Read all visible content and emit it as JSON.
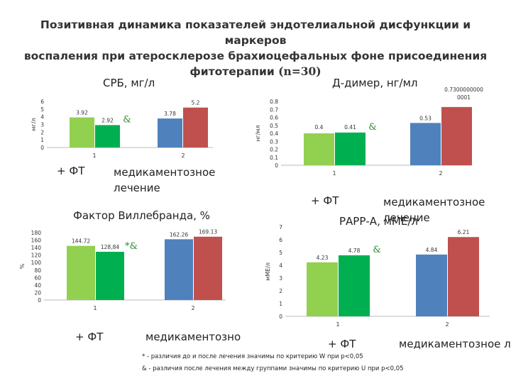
{
  "title": {
    "line1": "Позитивная динамика показателей эндотелиальной дисфункции и маркеров",
    "line2": "воспаления при атеросклерозе брахиоцефальных фоне присоединения",
    "line3_text": "фитотерапии ",
    "line3_n": "(n=30)"
  },
  "legend_labels": {
    "ft": "+ ФТ",
    "med": "медикаментозное лечение",
    "med_clipped": "медикаментозно"
  },
  "footnotes": {
    "star": "* - различия до и после лечения значимы по критерию W при p<0,05",
    "amp": "& - различия после лечения между группами значимы по критерию U при p<0,05"
  },
  "colors": {
    "light_green": "#92d050",
    "green": "#00b050",
    "blue": "#4f81bd",
    "red": "#c0504d",
    "marker": "#2e8b2e"
  },
  "chart_data": [
    {
      "id": "crp",
      "type": "bar",
      "title": "СРБ, мг/л",
      "ylabel": "мг/л",
      "categories": [
        "1",
        "2"
      ],
      "ylim": [
        0,
        6
      ],
      "yticks": [
        "0",
        "1",
        "2",
        "3",
        "4",
        "5",
        "6"
      ],
      "bars": [
        {
          "cat": 0,
          "value": 3.92,
          "label": "3.92",
          "color": "#92d050"
        },
        {
          "cat": 0,
          "value": 2.92,
          "label": "2.92",
          "color": "#00b050",
          "marker": "&"
        },
        {
          "cat": 1,
          "value": 3.78,
          "label": "3.78",
          "color": "#4f81bd"
        },
        {
          "cat": 1,
          "value": 5.2,
          "label": "5.2",
          "color": "#c0504d"
        }
      ]
    },
    {
      "id": "ddimer",
      "type": "bar",
      "title": "Д-димер, нг/мл",
      "ylabel": "нг/мл",
      "categories": [
        "1",
        "2"
      ],
      "ylim": [
        0,
        0.8
      ],
      "yticks": [
        "0",
        "0.1",
        "0.2",
        "0.3",
        "0.4",
        "0.5",
        "0.6",
        "0.7",
        "0.8"
      ],
      "bars": [
        {
          "cat": 0,
          "value": 0.4,
          "label": "0.4",
          "color": "#92d050"
        },
        {
          "cat": 0,
          "value": 0.41,
          "label": "0.41",
          "color": "#00b050",
          "marker": "&"
        },
        {
          "cat": 1,
          "value": 0.53,
          "label": "0.53",
          "color": "#4f81bd"
        },
        {
          "cat": 1,
          "value": 0.73,
          "label": "0.73000000000001",
          "color": "#c0504d"
        }
      ]
    },
    {
      "id": "vwf",
      "type": "bar",
      "title": "Фактор Виллебранда, %",
      "ylabel": "%",
      "categories": [
        "1",
        "2"
      ],
      "ylim": [
        0,
        180
      ],
      "yticks": [
        "0",
        "20",
        "40",
        "60",
        "80",
        "100",
        "120",
        "140",
        "160",
        "180"
      ],
      "bars": [
        {
          "cat": 0,
          "value": 144.72,
          "label": "144.72",
          "color": "#92d050"
        },
        {
          "cat": 0,
          "value": 128.84,
          "label": "128,84",
          "color": "#00b050",
          "marker": "*&"
        },
        {
          "cat": 1,
          "value": 162.26,
          "label": "162.26",
          "color": "#4f81bd"
        },
        {
          "cat": 1,
          "value": 169.13,
          "label": "169.13",
          "color": "#c0504d"
        }
      ]
    },
    {
      "id": "pappa",
      "type": "bar",
      "title": "РАРР-А, мМЕ/л",
      "ylabel": "мМЕ/л",
      "categories": [
        "1",
        "2"
      ],
      "ylim": [
        0,
        7
      ],
      "yticks": [
        "0",
        "1",
        "2",
        "3",
        "4",
        "5",
        "6",
        "7"
      ],
      "bars": [
        {
          "cat": 0,
          "value": 4.23,
          "label": "4.23",
          "color": "#92d050"
        },
        {
          "cat": 0,
          "value": 4.78,
          "label": "4.78",
          "color": "#00b050",
          "marker": "&"
        },
        {
          "cat": 1,
          "value": 4.84,
          "label": "4.84",
          "color": "#4f81bd"
        },
        {
          "cat": 1,
          "value": 6.21,
          "label": "6.21",
          "color": "#c0504d"
        }
      ]
    }
  ]
}
